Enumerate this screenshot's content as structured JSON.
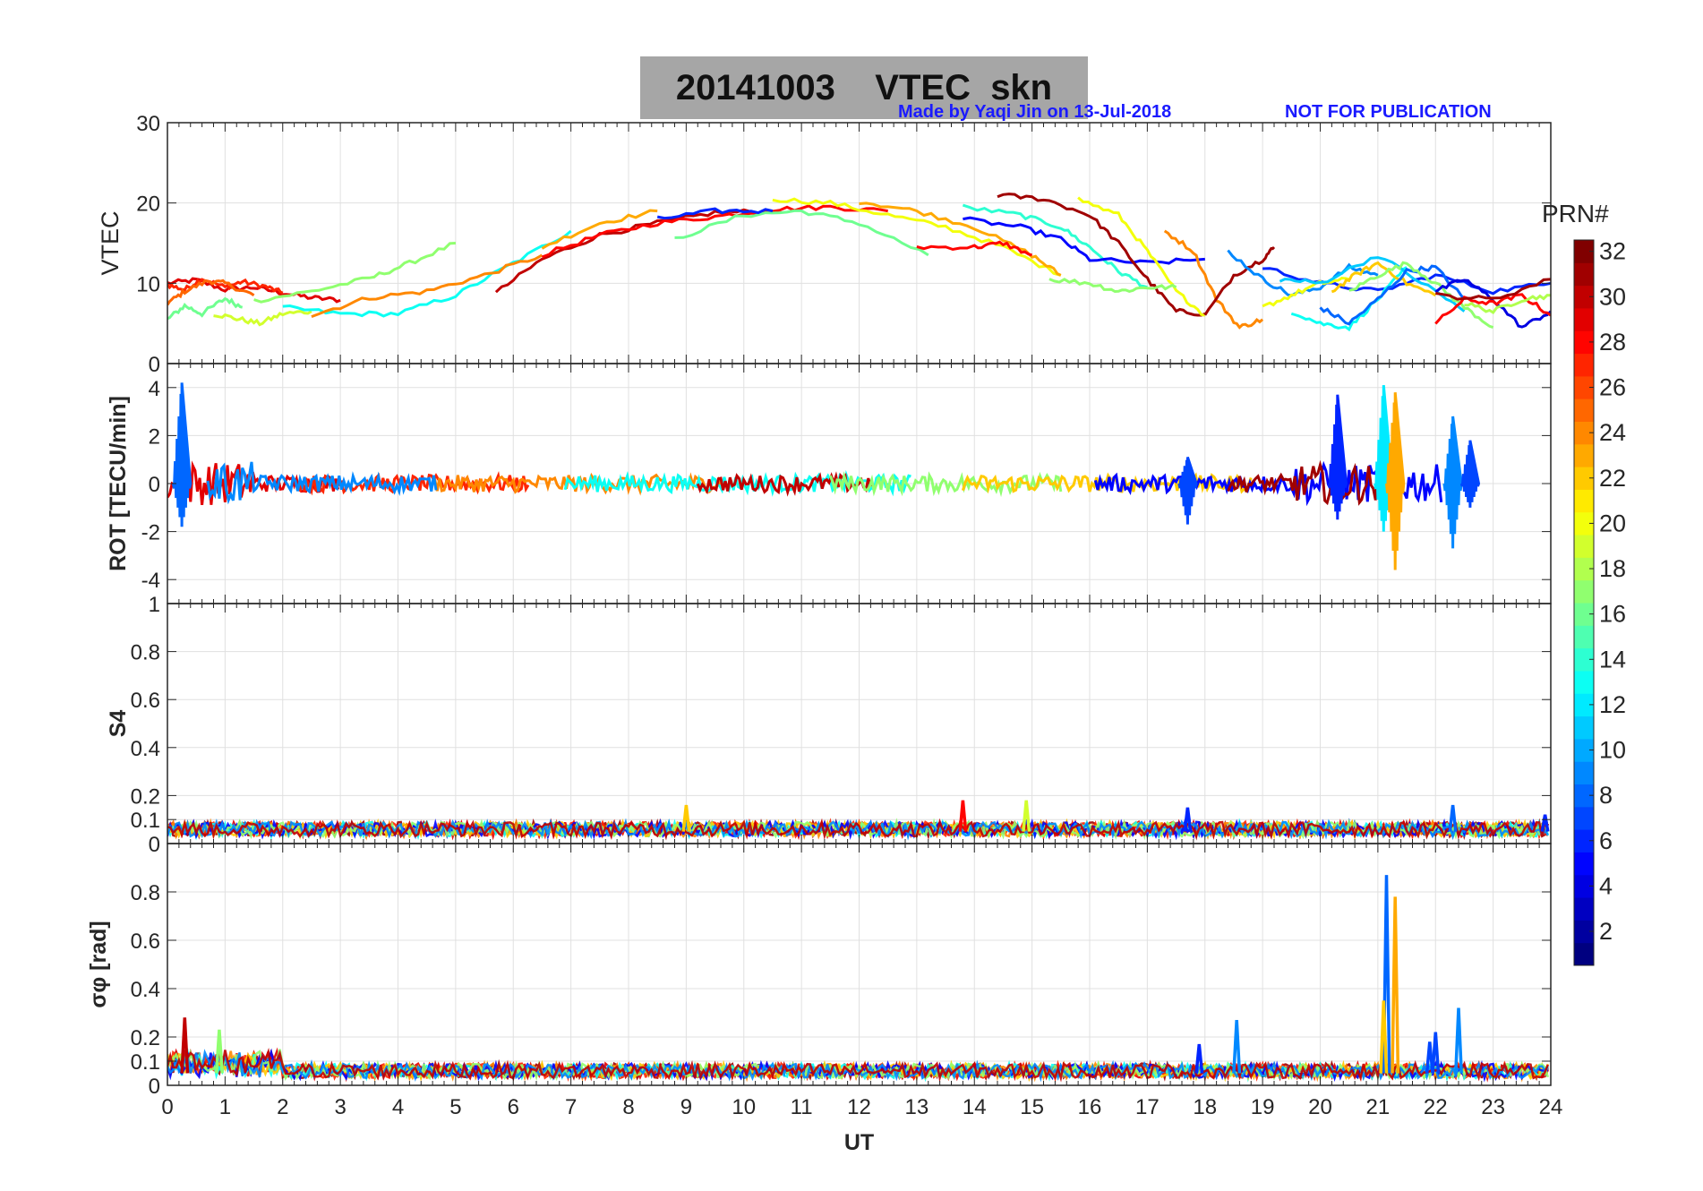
{
  "title": "20141003    VTEC  skn",
  "credit_left": "Made by Yaqi Jin on 13-Jul-2018",
  "credit_right": "NOT FOR PUBLICATION",
  "colors": {
    "title_bg": "#a6a6a6",
    "credit": "#1a1aff",
    "grid": "#e0e0e0",
    "axis": "#262626"
  },
  "colorbar": {
    "label": "PRN#",
    "range": [
      1,
      32
    ],
    "ticks": [
      "2",
      "4",
      "6",
      "8",
      "10",
      "12",
      "14",
      "16",
      "18",
      "20",
      "22",
      "24",
      "26",
      "28",
      "30",
      "32"
    ],
    "colormap": "jet"
  },
  "chart_data": [
    {
      "type": "line",
      "ylabel": "VTEC",
      "xlim": [
        0,
        24
      ],
      "ylim": [
        0,
        30
      ],
      "yticks": [
        "0",
        "10",
        "20",
        "30"
      ],
      "grid": true,
      "series": [
        {
          "prn": 29,
          "x": [
            0,
            0.5,
            1,
            1.5,
            2,
            2.5,
            3
          ],
          "y": [
            10,
            10.4,
            9.2,
            9.5,
            8.8,
            8.2,
            7.9
          ]
        },
        {
          "prn": 27,
          "x": [
            0,
            0.3,
            0.6,
            1,
            1.3,
            1.7,
            2
          ],
          "y": [
            9.8,
            9.2,
            10.6,
            9.5,
            10.2,
            9.6,
            8.8
          ]
        },
        {
          "prn": 25,
          "x": [
            0,
            0.3,
            0.7,
            1,
            1.5
          ],
          "y": [
            7.5,
            9.0,
            10.3,
            10.0,
            8.5
          ]
        },
        {
          "prn": 16,
          "x": [
            0,
            0.3,
            0.6,
            1,
            1.3
          ],
          "y": [
            5.5,
            7.2,
            6.2,
            8.1,
            7.0
          ]
        },
        {
          "prn": 19,
          "x": [
            0.8,
            1.2,
            1.6,
            2,
            2.5
          ],
          "y": [
            6.2,
            5.6,
            5.0,
            6.2,
            6.5
          ]
        },
        {
          "prn": 17,
          "x": [
            1.5,
            2.5,
            3.5,
            4.2,
            5
          ],
          "y": [
            7.8,
            9.0,
            10.6,
            12.5,
            15.0
          ]
        },
        {
          "prn": 13,
          "x": [
            2,
            3,
            4,
            5,
            6,
            7
          ],
          "y": [
            7.0,
            6.2,
            6.2,
            8.5,
            12.5,
            16.5
          ]
        },
        {
          "prn": 24,
          "x": [
            2.5,
            3.5,
            4.5,
            5.5,
            6.5
          ],
          "y": [
            6.0,
            8.2,
            9.0,
            11.0,
            13.5
          ]
        },
        {
          "prn": 30,
          "x": [
            5.7,
            6.5,
            7.5,
            8.5,
            9.5,
            10.5
          ],
          "y": [
            8.8,
            13.0,
            16.0,
            17.5,
            18.8,
            19.0
          ]
        },
        {
          "prn": 28,
          "x": [
            6.5,
            7.5,
            8.5,
            9.5,
            10.5,
            11.5,
            12.5
          ],
          "y": [
            13.5,
            16.0,
            17.5,
            18.3,
            19.2,
            19.5,
            19.0
          ]
        },
        {
          "prn": 23,
          "x": [
            6.5,
            7.5,
            8.5
          ],
          "y": [
            14.5,
            17.5,
            19.0
          ]
        },
        {
          "prn": 16,
          "x": [
            8.8,
            10,
            11,
            12,
            13.2
          ],
          "y": [
            15.5,
            18.5,
            19.0,
            17.5,
            13.5
          ]
        },
        {
          "prn": 6,
          "x": [
            8.5,
            9.5,
            10.5
          ],
          "y": [
            18.0,
            19.0,
            19.0
          ]
        },
        {
          "prn": 20,
          "x": [
            10.5,
            11.5,
            12.5,
            13.5,
            14.5,
            15.5
          ],
          "y": [
            20.5,
            20.0,
            18.5,
            17.0,
            14.5,
            11.0
          ]
        },
        {
          "prn": 23,
          "x": [
            12,
            13,
            14,
            15,
            15.5
          ],
          "y": [
            20.2,
            19.0,
            17.0,
            13.5,
            11.0
          ]
        },
        {
          "prn": 28,
          "x": [
            13,
            14,
            14.5,
            15
          ],
          "y": [
            14.5,
            14.5,
            15.0,
            13.5
          ]
        },
        {
          "prn": 14,
          "x": [
            13.8,
            14.8,
            15.5,
            16,
            16.5,
            17
          ],
          "y": [
            19.5,
            18.5,
            17.0,
            14.5,
            11.5,
            9.5
          ]
        },
        {
          "prn": 5,
          "x": [
            13.8,
            14.8,
            15.5,
            16,
            17,
            18
          ],
          "y": [
            18.0,
            17.0,
            15.5,
            13.0,
            12.5,
            13.0
          ]
        },
        {
          "prn": 31,
          "x": [
            14.4,
            15.2,
            16,
            16.5,
            17,
            17.5,
            18
          ],
          "y": [
            21.0,
            20.5,
            18.5,
            15.0,
            10.5,
            6.5,
            6.2
          ]
        },
        {
          "prn": 20,
          "x": [
            15.8,
            16.5,
            17,
            17.5,
            18
          ],
          "y": [
            20.5,
            18.5,
            14.0,
            9.0,
            6.0
          ]
        },
        {
          "prn": 17,
          "x": [
            15.3,
            16,
            16.5,
            17,
            17.5
          ],
          "y": [
            10.5,
            10.0,
            9.0,
            9.5,
            9.5
          ]
        },
        {
          "prn": 24,
          "x": [
            17.3,
            17.8,
            18.2,
            18.6,
            19
          ],
          "y": [
            16.5,
            14.0,
            8.0,
            4.5,
            5.5
          ]
        },
        {
          "prn": 31,
          "x": [
            18,
            18.5,
            19,
            19.2
          ],
          "y": [
            6.0,
            11.0,
            13.0,
            14.5
          ]
        },
        {
          "prn": 9,
          "x": [
            18.4,
            19,
            19.5,
            20,
            20.5,
            21
          ],
          "y": [
            14.0,
            10.5,
            8.5,
            9.5,
            12.0,
            11.0
          ]
        },
        {
          "prn": 6,
          "x": [
            19,
            20,
            21,
            22,
            23,
            24
          ],
          "y": [
            12.0,
            10.0,
            9.0,
            11.0,
            9.0,
            10.0
          ]
        },
        {
          "prn": 13,
          "x": [
            19.5,
            20,
            20.5,
            21,
            21.5
          ],
          "y": [
            6.5,
            5.0,
            4.5,
            8.0,
            12.0
          ]
        },
        {
          "prn": 20,
          "x": [
            19,
            19.5,
            20,
            20.5
          ],
          "y": [
            7.0,
            8.5,
            10.0,
            10.5
          ]
        },
        {
          "prn": 22,
          "x": [
            20.2,
            20.6,
            21,
            21.5,
            22
          ],
          "y": [
            9.0,
            11.0,
            12.5,
            10.0,
            8.5
          ]
        },
        {
          "prn": 11,
          "x": [
            19.3,
            20,
            21,
            22,
            22.5
          ],
          "y": [
            10.5,
            10.0,
            13.5,
            9.0,
            6.5
          ]
        },
        {
          "prn": 8,
          "x": [
            20,
            20.5,
            21,
            21.5,
            22,
            22.5
          ],
          "y": [
            7.0,
            5.0,
            8.0,
            11.5,
            12.0,
            8.0
          ]
        },
        {
          "prn": 17,
          "x": [
            20.5,
            21,
            21.5,
            22,
            22.5,
            23
          ],
          "y": [
            9.0,
            11.0,
            12.5,
            10.0,
            7.0,
            4.5
          ]
        },
        {
          "prn": 4,
          "x": [
            22,
            22.5,
            23,
            23.5,
            24
          ],
          "y": [
            9.0,
            10.5,
            8.0,
            4.5,
            6.5
          ]
        },
        {
          "prn": 28,
          "x": [
            22,
            22.5,
            23,
            23.5,
            24
          ],
          "y": [
            5.0,
            8.0,
            7.5,
            8.5,
            6.0
          ]
        },
        {
          "prn": 18,
          "x": [
            22.5,
            23,
            23.5,
            24
          ],
          "y": [
            7.5,
            6.5,
            8.0,
            8.5
          ]
        },
        {
          "prn": 31,
          "x": [
            22,
            23,
            24
          ],
          "y": [
            8.5,
            8.0,
            10.5
          ]
        }
      ]
    },
    {
      "type": "line",
      "ylabel": "ROT [TECU/min]",
      "xlim": [
        0,
        24
      ],
      "ylim": [
        -5,
        5
      ],
      "yticks": [
        "-4",
        "-2",
        "0",
        "2",
        "4"
      ],
      "grid": true,
      "spikes": [
        {
          "prn": 8,
          "x": 0.25,
          "min": -1.8,
          "max": 4.2
        },
        {
          "prn": 7,
          "x": 17.7,
          "min": -1.7,
          "max": 1.1
        },
        {
          "prn": 6,
          "x": 20.3,
          "min": -1.5,
          "max": 3.7
        },
        {
          "prn": 12,
          "x": 21.1,
          "min": -2.0,
          "max": 4.1
        },
        {
          "prn": 23,
          "x": 21.3,
          "min": -3.6,
          "max": 3.8
        },
        {
          "prn": 9,
          "x": 22.3,
          "min": -2.7,
          "max": 2.8
        },
        {
          "prn": 7,
          "x": 22.6,
          "min": -1.0,
          "max": 1.8
        }
      ]
    },
    {
      "type": "line",
      "ylabel": "S4",
      "xlim": [
        0,
        24
      ],
      "ylim": [
        0,
        1
      ],
      "yticks": [
        "0",
        "0.1",
        "0.2",
        "0.4",
        "0.6",
        "0.8",
        "1"
      ],
      "grid": true,
      "baseline": [
        0.03,
        0.09
      ],
      "spikes": [
        {
          "prn": 22,
          "x": 9.0,
          "max": 0.16
        },
        {
          "prn": 28,
          "x": 13.8,
          "max": 0.18
        },
        {
          "prn": 19,
          "x": 14.9,
          "max": 0.18
        },
        {
          "prn": 6,
          "x": 17.7,
          "max": 0.15
        },
        {
          "prn": 8,
          "x": 22.3,
          "max": 0.16
        },
        {
          "prn": 6,
          "x": 23.9,
          "max": 0.12
        }
      ]
    },
    {
      "type": "line",
      "ylabel": "σφ [rad]",
      "xlabel": "UT",
      "xlim": [
        0,
        24
      ],
      "ylim": [
        0,
        1
      ],
      "xticks": [
        "0",
        "1",
        "2",
        "3",
        "4",
        "5",
        "6",
        "7",
        "8",
        "9",
        "10",
        "11",
        "12",
        "13",
        "14",
        "15",
        "16",
        "17",
        "18",
        "19",
        "20",
        "21",
        "22",
        "23",
        "24"
      ],
      "yticks": [
        "0",
        "0.1",
        "0.2",
        "0.4",
        "0.6",
        "0.8"
      ],
      "grid": true,
      "baseline": [
        0.03,
        0.09
      ],
      "spikes": [
        {
          "prn": 30,
          "x": 0.3,
          "max": 0.28
        },
        {
          "prn": 17,
          "x": 0.9,
          "max": 0.23
        },
        {
          "prn": 9,
          "x": 18.55,
          "max": 0.27
        },
        {
          "prn": 6,
          "x": 17.9,
          "max": 0.17
        },
        {
          "prn": 8,
          "x": 21.15,
          "max": 0.87
        },
        {
          "prn": 23,
          "x": 21.3,
          "max": 0.78
        },
        {
          "prn": 22,
          "x": 21.1,
          "max": 0.35
        },
        {
          "prn": 7,
          "x": 22.0,
          "max": 0.22
        },
        {
          "prn": 9,
          "x": 22.4,
          "max": 0.32
        },
        {
          "prn": 7,
          "x": 21.9,
          "max": 0.18
        }
      ]
    }
  ]
}
